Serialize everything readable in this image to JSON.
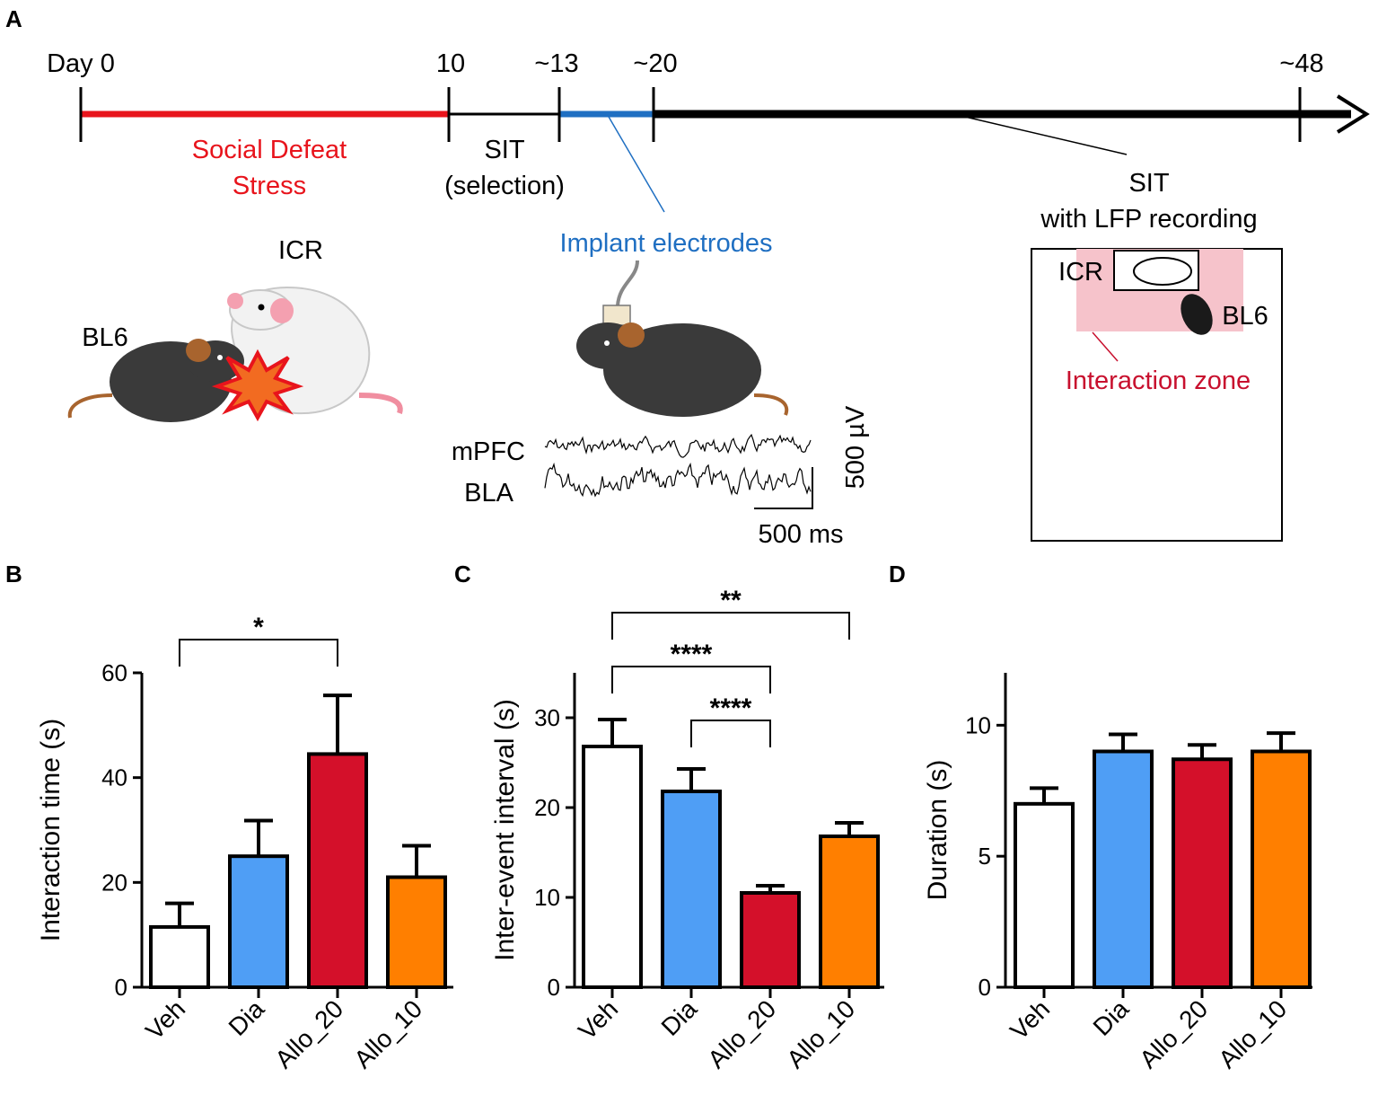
{
  "panels": {
    "A": "A",
    "B": "B",
    "C": "C",
    "D": "D"
  },
  "timeline": {
    "days": [
      "Day 0",
      "10",
      "~13",
      "~20",
      "~48"
    ],
    "phase_defeat": [
      "Social Defeat",
      "Stress"
    ],
    "phase_sit_selection": [
      "SIT",
      "(selection)"
    ],
    "implant": "Implant electrodes",
    "sit_recording": [
      "SIT",
      "with LFP recording"
    ]
  },
  "illustration": {
    "icr": "ICR",
    "bl6": "BL6",
    "arena_icr": "ICR",
    "arena_bl6": "BL6",
    "interaction_zone": "Interaction zone",
    "trace_mpfc": "mPFC",
    "trace_bla": "BLA",
    "scale_v": "500 µV",
    "scale_t": "500 ms"
  },
  "colors": {
    "defeat": "#e8141c",
    "implant": "#1f6fc2",
    "zone": "#f6c3cb",
    "zone_text": "#c8102e",
    "veh": "#ffffff",
    "dia": "#4f9ef5",
    "allo20": "#d4102a",
    "allo10": "#ff7f00"
  },
  "chart_data": [
    {
      "panel": "B",
      "type": "bar",
      "categories": [
        "Veh",
        "Dia",
        "Allo_20",
        "Allo_10"
      ],
      "values": [
        11.5,
        25,
        44.5,
        21
      ],
      "errors": [
        4.5,
        6.8,
        11.2,
        6
      ],
      "ylabel": "Interaction time (s)",
      "xlabel": "",
      "ylim": [
        0,
        60
      ],
      "yticks": [
        0,
        20,
        40,
        60
      ],
      "ytick_labels": [
        "0",
        "20",
        "40",
        "60"
      ],
      "significance": [
        {
          "from": 0,
          "to": 2,
          "label": "*"
        }
      ]
    },
    {
      "panel": "C",
      "type": "bar",
      "categories": [
        "Veh",
        "Dia",
        "Allo_20",
        "Allo_10"
      ],
      "values": [
        26.8,
        21.8,
        10.5,
        16.8
      ],
      "errors": [
        3,
        2.5,
        0.8,
        1.5
      ],
      "ylabel": "Inter-event interval (s)",
      "xlabel": "",
      "ylim": [
        0,
        35
      ],
      "yticks": [
        0,
        10,
        20,
        30
      ],
      "ytick_labels": [
        "0",
        "10",
        "20",
        "30"
      ],
      "significance": [
        {
          "from": 0,
          "to": 3,
          "label": "**"
        },
        {
          "from": 0,
          "to": 2,
          "label": "****"
        },
        {
          "from": 1,
          "to": 2,
          "label": "****"
        }
      ]
    },
    {
      "panel": "D",
      "type": "bar",
      "categories": [
        "Veh",
        "Dia",
        "Allo_20",
        "Allo_10"
      ],
      "values": [
        7,
        9,
        8.7,
        9
      ],
      "errors": [
        0.6,
        0.65,
        0.55,
        0.7
      ],
      "ylabel": "Duration (s)",
      "xlabel": "",
      "ylim": [
        0,
        12
      ],
      "yticks": [
        0,
        5,
        10
      ],
      "ytick_labels": [
        "0",
        "5",
        "10"
      ],
      "significance": []
    }
  ]
}
